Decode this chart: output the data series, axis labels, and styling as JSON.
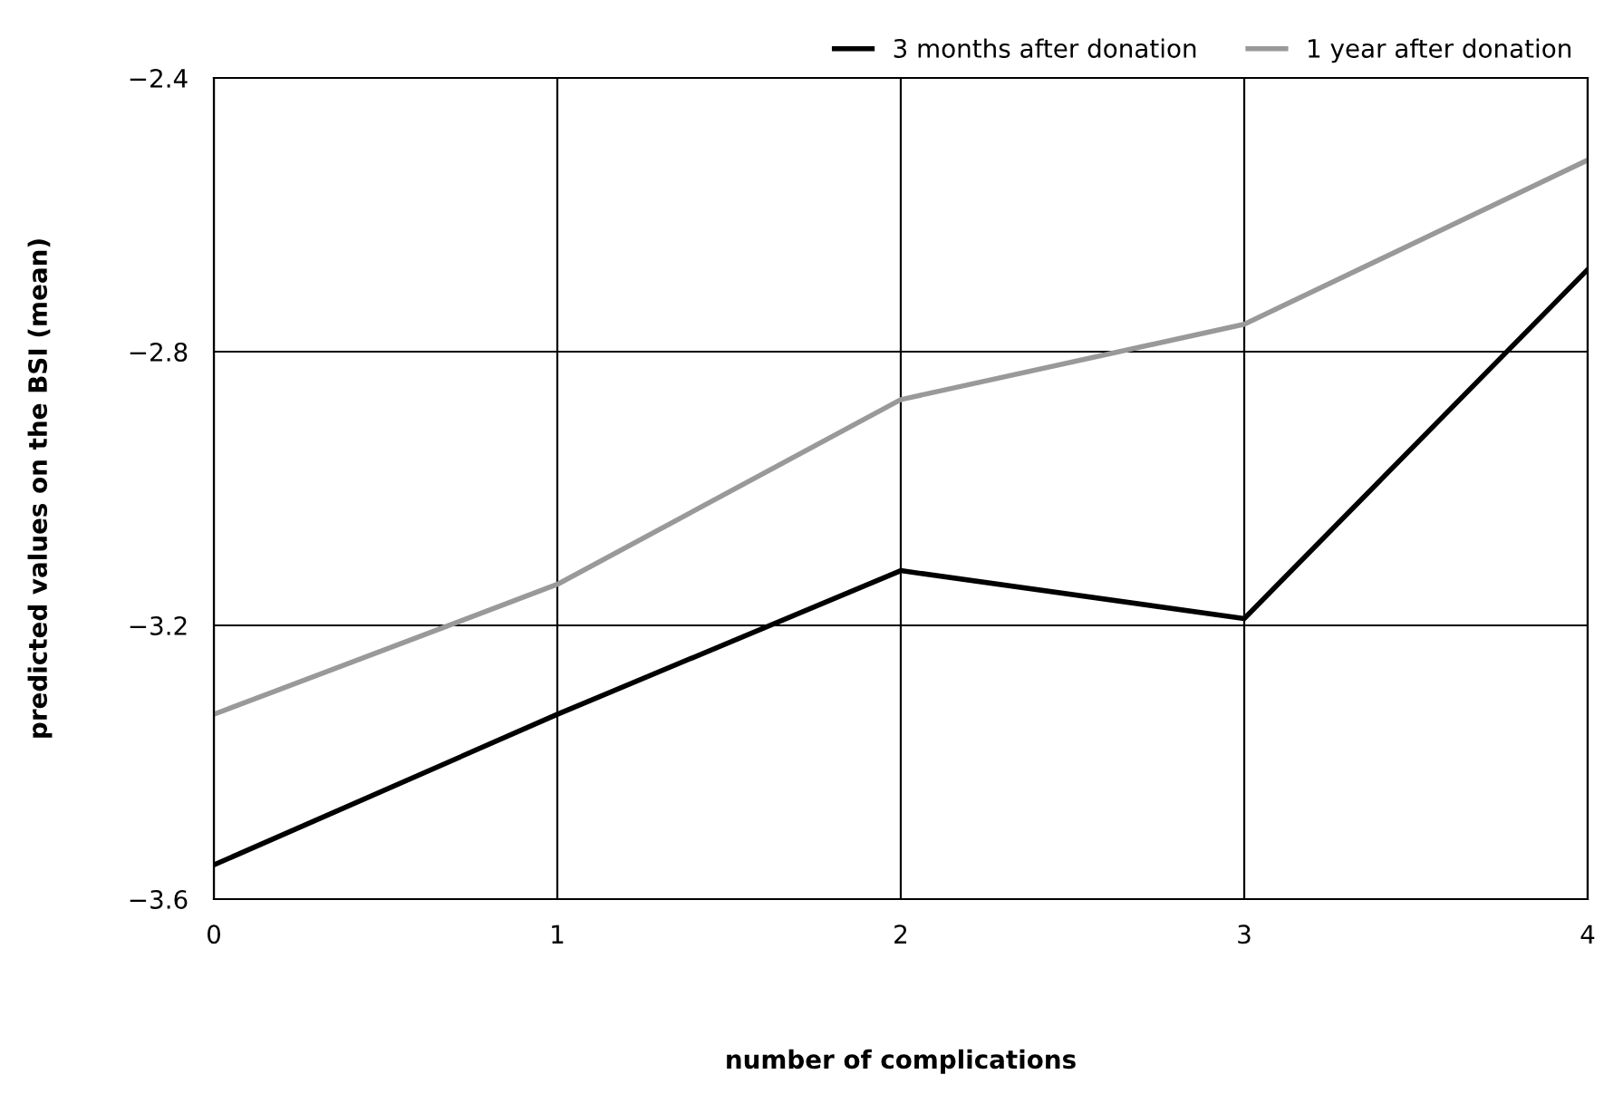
{
  "chart_data": {
    "type": "line",
    "xlabel": "number of complications",
    "ylabel": "predicted values on the BSI (mean)",
    "x": [
      0,
      1,
      2,
      3,
      4
    ],
    "series": [
      {
        "name": "3 months after donation",
        "color": "#000000",
        "values": [
          -3.55,
          -3.33,
          -3.12,
          -3.19,
          -2.68
        ]
      },
      {
        "name": "1 year after donation",
        "color": "#999999",
        "values": [
          -3.33,
          -3.14,
          -2.87,
          -2.76,
          -2.52
        ]
      }
    ],
    "xlim": [
      0,
      4
    ],
    "xticks": [
      0,
      1,
      2,
      3,
      4
    ],
    "ylim": [
      -3.6,
      -2.4
    ],
    "yticks": [
      {
        "value": -3.6,
        "label": "−3.6"
      },
      {
        "value": -3.2,
        "label": "−3.2"
      },
      {
        "value": -2.8,
        "label": "−2.8"
      },
      {
        "value": -2.4,
        "label": "−2.4"
      }
    ],
    "grid": true,
    "legend": "top right",
    "marker": "none",
    "line_style": "solid"
  }
}
